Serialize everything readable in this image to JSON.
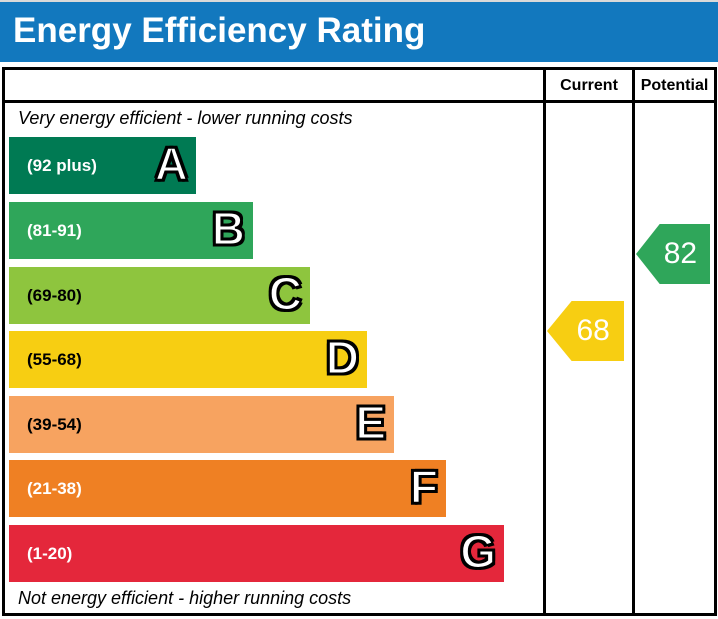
{
  "title": "Energy Efficiency Rating",
  "columns": {
    "current": "Current",
    "potential": "Potential"
  },
  "top_caption": "Very energy efficient - lower running costs",
  "bottom_caption": "Not energy efficient - higher running costs",
  "bands": [
    {
      "letter": "A",
      "range": "(92 plus)",
      "color": "#007a53",
      "label_color": "#ffffff"
    },
    {
      "letter": "B",
      "range": "(81-91)",
      "color": "#2fa65a",
      "label_color": "#ffffff"
    },
    {
      "letter": "C",
      "range": "(69-80)",
      "color": "#8ec53e",
      "label_color": "#000000"
    },
    {
      "letter": "D",
      "range": "(55-68)",
      "color": "#f7ce12",
      "label_color": "#000000"
    },
    {
      "letter": "E",
      "range": "(39-54)",
      "color": "#f7a360",
      "label_color": "#000000"
    },
    {
      "letter": "F",
      "range": "(21-38)",
      "color": "#ef8023",
      "label_color": "#ffffff"
    },
    {
      "letter": "G",
      "range": "(1-20)",
      "color": "#e4273b",
      "label_color": "#ffffff"
    }
  ],
  "current": {
    "value": "68",
    "band": "D",
    "color": "#f7ce12"
  },
  "potential": {
    "value": "82",
    "band": "B",
    "color": "#2fa65a"
  },
  "accent_colors": {
    "header_blue": "#1278be",
    "border_black": "#000000"
  },
  "chart_data": {
    "type": "bar",
    "orientation": "horizontal",
    "title": "Energy Efficiency Rating",
    "categories": [
      "A",
      "B",
      "C",
      "D",
      "E",
      "F",
      "G"
    ],
    "band_ranges": [
      "92 plus",
      "81-91",
      "69-80",
      "55-68",
      "39-54",
      "21-38",
      "1-20"
    ],
    "band_colors": [
      "#007a53",
      "#2fa65a",
      "#8ec53e",
      "#f7ce12",
      "#f7a360",
      "#ef8023",
      "#e4273b"
    ],
    "relative_bar_widths_pct": [
      35,
      46,
      56,
      67,
      72,
      82,
      94
    ],
    "markers": [
      {
        "name": "Current",
        "value": 68,
        "band": "D",
        "color": "#f7ce12"
      },
      {
        "name": "Potential",
        "value": 82,
        "band": "B",
        "color": "#2fa65a"
      }
    ],
    "annotations": [
      "Very energy efficient - lower running costs",
      "Not energy efficient - higher running costs"
    ],
    "legend_position": "none",
    "grid": false
  }
}
